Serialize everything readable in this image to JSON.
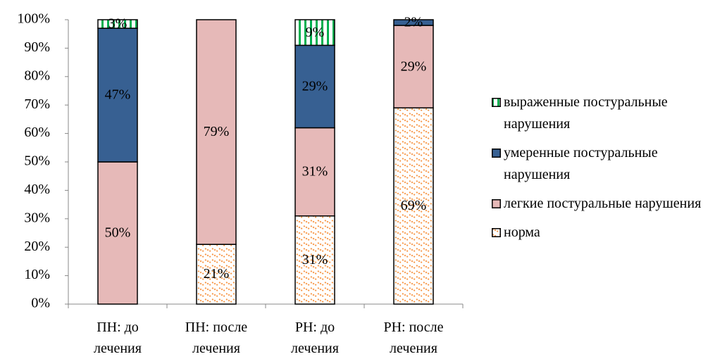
{
  "chart_data": {
    "type": "stacked_bar",
    "categories": [
      "ПН: до лечения",
      "ПН: после лечения",
      "РН: до лечения",
      "РН: после лечения"
    ],
    "series": [
      {
        "name": "норма",
        "color": "#f79646",
        "pattern": "diagonal",
        "values": [
          0,
          21,
          31,
          69
        ],
        "value_labels": [
          null,
          "21%",
          "31%",
          "69%"
        ]
      },
      {
        "name": "легкие постуральные нарушения",
        "color": "#e6b9b8",
        "values": [
          50,
          79,
          31,
          29
        ],
        "value_labels": [
          "50%",
          "79%",
          "31%",
          "29%"
        ]
      },
      {
        "name": "умеренные постуральные нарушения",
        "color": "#376092",
        "values": [
          47,
          0,
          29,
          2
        ],
        "value_labels": [
          "47%",
          null,
          "29%",
          "2%"
        ]
      },
      {
        "name": "выраженные постуральные нарушения",
        "color": "#00b050",
        "pattern": "vertical",
        "values": [
          3,
          0,
          9,
          0
        ],
        "value_labels": [
          "3%",
          null,
          "9%",
          null
        ]
      }
    ],
    "ylim": [
      0,
      100
    ],
    "yticks": [
      {
        "value": 0,
        "label": "0%"
      },
      {
        "value": 10,
        "label": "10%"
      },
      {
        "value": 20,
        "label": "20%"
      },
      {
        "value": 30,
        "label": "30%"
      },
      {
        "value": 40,
        "label": "40%"
      },
      {
        "value": 50,
        "label": "50%"
      },
      {
        "value": 60,
        "label": "60%"
      },
      {
        "value": 70,
        "label": "70%"
      },
      {
        "value": 80,
        "label": "80%"
      },
      {
        "value": 90,
        "label": "90%"
      },
      {
        "value": 100,
        "label": "100%"
      }
    ],
    "legend": "right"
  }
}
